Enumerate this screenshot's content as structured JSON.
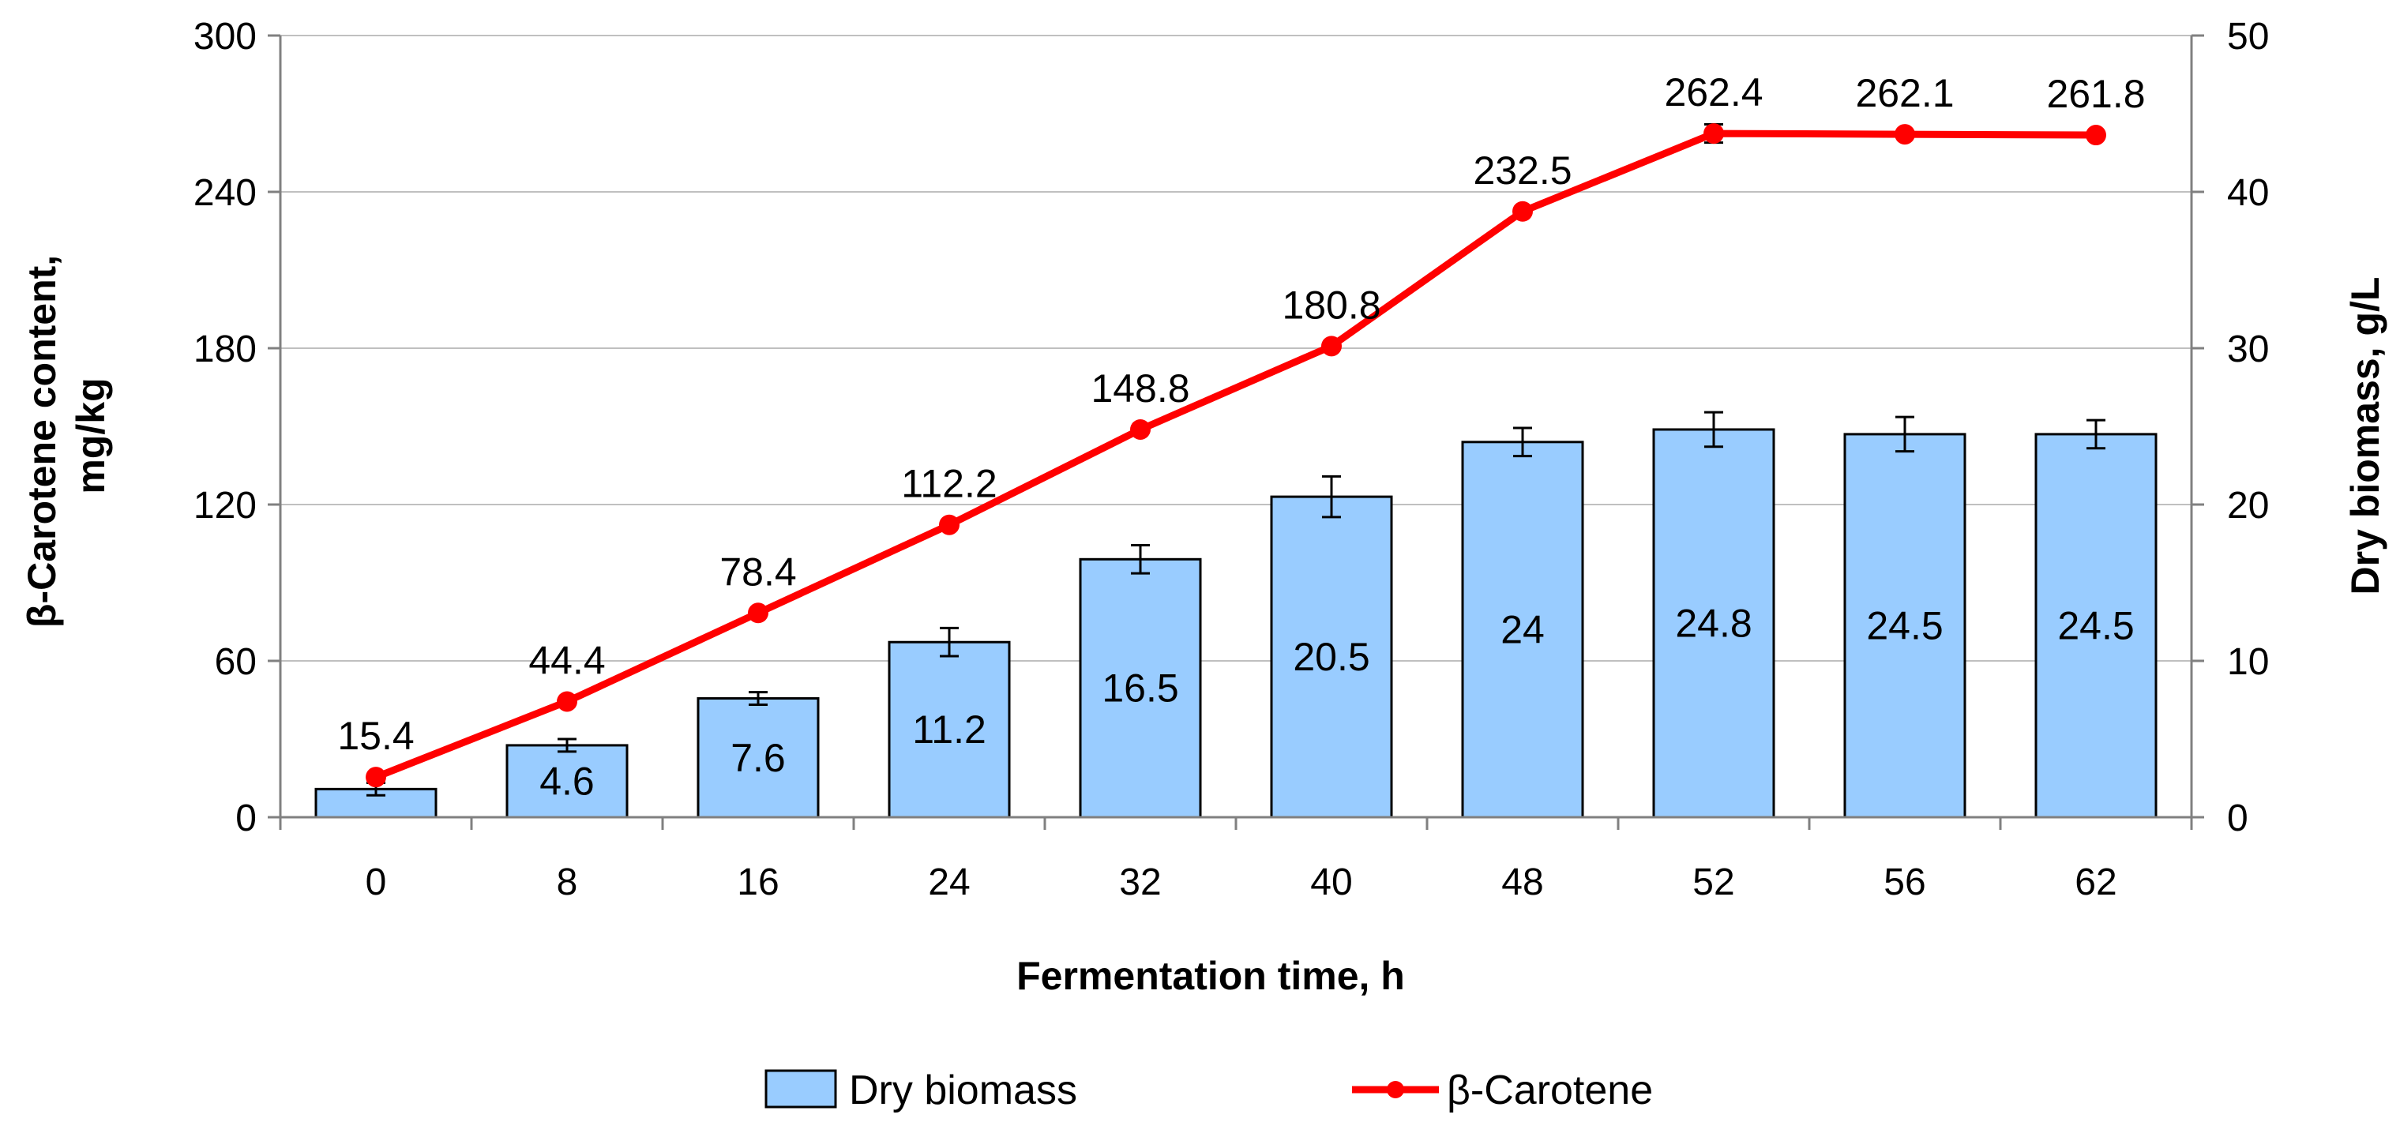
{
  "chart_data": {
    "type": "bar",
    "title": "",
    "xlabel": "Fermentation time, h",
    "ylabel_left": "β-Carotene content, mg/kg",
    "ylabel_left_lines": [
      "β-Carotene content,",
      "mg/kg"
    ],
    "ylabel_right": "Dry biomass, g/L",
    "categories": [
      "0",
      "8",
      "16",
      "24",
      "32",
      "40",
      "48",
      "52",
      "56",
      "62"
    ],
    "ylim_left": [
      0,
      300
    ],
    "yticks_left": [
      "0",
      "60",
      "120",
      "180",
      "240",
      "300"
    ],
    "ylim_right": [
      0,
      50
    ],
    "yticks_right": [
      "0",
      "10",
      "20",
      "30",
      "40",
      "50"
    ],
    "grid": true,
    "legend_position": "bottom",
    "colors": {
      "bar_fill": "#99CCFF",
      "line": "#FF0000",
      "bar_stroke": "#000000",
      "grid": "#C0C0C0"
    },
    "series": [
      {
        "name": "Dry biomass",
        "kind": "bar",
        "axis": "right",
        "values": [
          1.8,
          4.6,
          7.6,
          11.2,
          16.5,
          20.5,
          24,
          24.8,
          24.5,
          24.5
        ],
        "errors": [
          0.4,
          0.4,
          0.4,
          0.9,
          0.9,
          1.3,
          0.9,
          1.1,
          1.1,
          0.9
        ],
        "labels": [
          "",
          "4.6",
          "7.6",
          "11.2",
          "16.5",
          "20.5",
          "24",
          "24.8",
          "24.5",
          "24.5"
        ]
      },
      {
        "name": "β-Carotene",
        "kind": "line",
        "axis": "left",
        "values": [
          15.4,
          44.4,
          78.4,
          112.2,
          148.8,
          180.8,
          232.5,
          262.4,
          262.1,
          261.8
        ],
        "errors": [
          1,
          1,
          1,
          1,
          1,
          1,
          1,
          3.5,
          1,
          1
        ],
        "labels": [
          "15.4",
          "44.4",
          "78.4",
          "112.2",
          "148.8",
          "180.8",
          "232.5",
          "262.4",
          "262.1",
          "261.8"
        ]
      }
    ]
  }
}
